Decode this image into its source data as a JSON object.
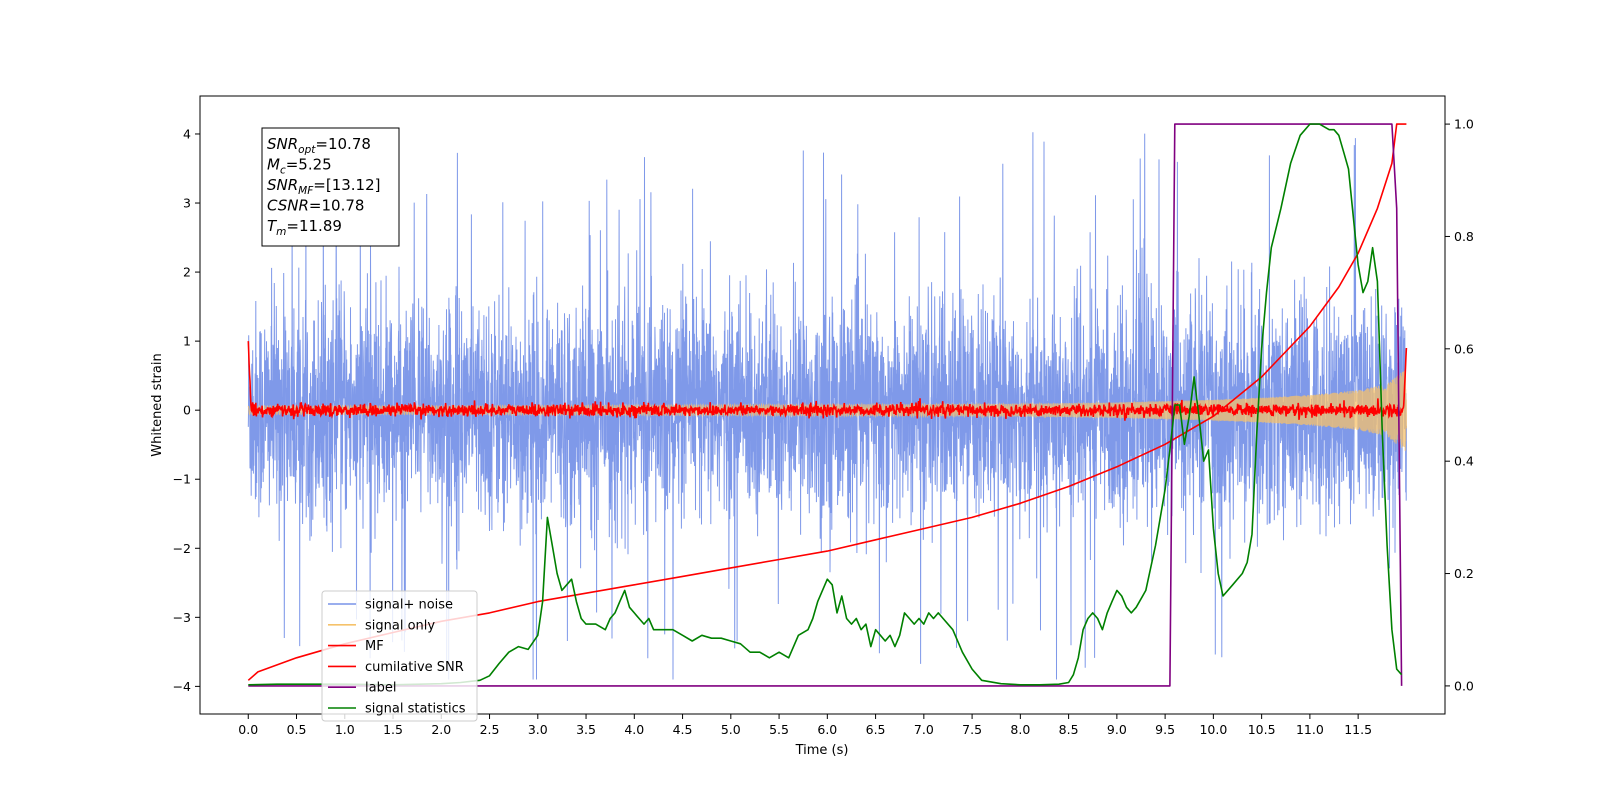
{
  "chart_data": {
    "type": "line",
    "xlabel": "Time (s)",
    "ylabel": "Whitened strain",
    "ylabel_right": "",
    "xlim": [
      -0.5,
      12.4
    ],
    "ylim": [
      -4.4,
      4.55
    ],
    "ylim_right": [
      -0.05,
      1.05
    ],
    "x_ticks": [
      0.0,
      0.5,
      1.0,
      1.5,
      2.0,
      2.5,
      3.0,
      3.5,
      4.0,
      4.5,
      5.0,
      5.5,
      6.0,
      6.5,
      7.0,
      7.5,
      8.0,
      8.5,
      9.0,
      9.5,
      10.0,
      10.5,
      11.0,
      11.5
    ],
    "x_tick_labels": [
      "0.0",
      "0.5",
      "1.0",
      "1.5",
      "2.0",
      "2.5",
      "3.0",
      "3.5",
      "4.0",
      "4.5",
      "5.0",
      "5.5",
      "6.0",
      "6.5",
      "7.0",
      "7.5",
      "8.0",
      "8.5",
      "9.0",
      "9.5",
      "10.0",
      "10.5",
      "11.0",
      "11.5"
    ],
    "y_ticks": [
      -4,
      -3,
      -2,
      -1,
      0,
      1,
      2,
      3,
      4
    ],
    "y_tick_labels": [
      "−4",
      "−3",
      "−2",
      "−1",
      "0",
      "1",
      "2",
      "3",
      "4"
    ],
    "y_right_ticks": [
      0.0,
      0.2,
      0.4,
      0.6,
      0.8,
      1.0
    ],
    "y_right_tick_labels": [
      "0.0",
      "0.2",
      "0.4",
      "0.6",
      "0.8",
      "1.0"
    ],
    "grid": false,
    "legend_placement": "lower-left",
    "annotation_box": {
      "placement": "top-left",
      "lines": [
        {
          "base": "SNR",
          "sub": "opt",
          "value": "=10.78"
        },
        {
          "base": "M",
          "sub": "c",
          "value": "=5.25"
        },
        {
          "base": "SNR",
          "sub": "MF",
          "value": "=[13.12]"
        },
        {
          "base": "CSNR",
          "sub": "",
          "value": "=10.78"
        },
        {
          "base": "T",
          "sub": "m",
          "value": "=11.89"
        }
      ]
    },
    "series": [
      {
        "name": "signal+ noise",
        "color": "#7893e8",
        "axis": "left",
        "style": "noise",
        "x_range": [
          0.0,
          12.0
        ],
        "typical_range": [
          -2.0,
          2.0
        ],
        "peak_range": [
          -3.9,
          4.2
        ]
      },
      {
        "name": "signal only",
        "color": "#f5c26b",
        "axis": "left",
        "style": "chirp",
        "x_range": [
          0.0,
          12.0
        ],
        "envelope": {
          "x": [
            0,
            2,
            4,
            6,
            8,
            9,
            10,
            10.5,
            11,
            11.5,
            11.8,
            11.95,
            12.0
          ],
          "amp": [
            0.06,
            0.06,
            0.07,
            0.08,
            0.09,
            0.11,
            0.15,
            0.18,
            0.22,
            0.29,
            0.38,
            0.55,
            0.6
          ]
        }
      },
      {
        "name": "MF",
        "color": "#ff0000",
        "axis": "left",
        "style": "noise",
        "x_range": [
          0.0,
          12.0
        ],
        "typical_range": [
          -0.12,
          0.12
        ],
        "start_value": 1.0,
        "end_value": 0.9
      },
      {
        "name": "cumilative SNR",
        "color": "#ff0000",
        "axis": "right",
        "x": [
          0.0,
          0.1,
          0.5,
          1.0,
          1.5,
          2.0,
          2.5,
          3.0,
          3.5,
          4.0,
          4.5,
          5.0,
          5.5,
          6.0,
          6.5,
          7.0,
          7.5,
          8.0,
          8.5,
          9.0,
          9.5,
          10.0,
          10.5,
          11.0,
          11.3,
          11.5,
          11.7,
          11.85,
          11.9,
          12.0
        ],
        "y": [
          0.01,
          0.025,
          0.05,
          0.075,
          0.095,
          0.115,
          0.13,
          0.15,
          0.165,
          0.18,
          0.195,
          0.21,
          0.225,
          0.24,
          0.26,
          0.28,
          0.3,
          0.325,
          0.355,
          0.39,
          0.43,
          0.48,
          0.55,
          0.64,
          0.71,
          0.77,
          0.85,
          0.93,
          1.0,
          1.0
        ]
      },
      {
        "name": "label",
        "color": "#800080",
        "axis": "right",
        "x": [
          0.0,
          9.55,
          9.6,
          11.85,
          11.9,
          11.95
        ],
        "y": [
          0.0,
          0.0,
          1.0,
          1.0,
          0.85,
          0.0
        ]
      },
      {
        "name": "signal statistics",
        "color": "#008000",
        "axis": "right",
        "x": [
          0.0,
          0.3,
          1.0,
          1.5,
          2.0,
          2.2,
          2.4,
          2.5,
          2.6,
          2.7,
          2.8,
          2.9,
          3.0,
          3.05,
          3.1,
          3.15,
          3.2,
          3.25,
          3.3,
          3.35,
          3.4,
          3.45,
          3.5,
          3.55,
          3.6,
          3.7,
          3.75,
          3.8,
          3.85,
          3.9,
          3.95,
          4.0,
          4.05,
          4.1,
          4.15,
          4.2,
          4.3,
          4.4,
          4.5,
          4.6,
          4.7,
          4.8,
          4.9,
          5.0,
          5.1,
          5.2,
          5.3,
          5.4,
          5.5,
          5.6,
          5.7,
          5.8,
          5.85,
          5.9,
          6.0,
          6.05,
          6.1,
          6.15,
          6.2,
          6.25,
          6.3,
          6.35,
          6.4,
          6.45,
          6.5,
          6.55,
          6.6,
          6.65,
          6.7,
          6.75,
          6.8,
          6.85,
          6.9,
          6.95,
          7.0,
          7.05,
          7.1,
          7.15,
          7.2,
          7.3,
          7.4,
          7.5,
          7.6,
          7.8,
          8.0,
          8.2,
          8.4,
          8.5,
          8.55,
          8.6,
          8.65,
          8.7,
          8.75,
          8.8,
          8.85,
          8.9,
          8.95,
          9.0,
          9.05,
          9.1,
          9.15,
          9.2,
          9.3,
          9.4,
          9.5,
          9.55,
          9.6,
          9.65,
          9.7,
          9.75,
          9.8,
          9.85,
          9.9,
          9.95,
          10.0,
          10.05,
          10.1,
          10.2,
          10.3,
          10.35,
          10.4,
          10.45,
          10.5,
          10.55,
          10.6,
          10.7,
          10.8,
          10.9,
          11.0,
          11.1,
          11.2,
          11.25,
          11.3,
          11.35,
          11.4,
          11.5,
          11.55,
          11.6,
          11.65,
          11.7,
          11.75,
          11.8,
          11.85,
          11.9,
          11.95
        ],
        "y": [
          0.002,
          0.003,
          0.003,
          0.002,
          0.004,
          0.006,
          0.01,
          0.018,
          0.04,
          0.06,
          0.07,
          0.065,
          0.09,
          0.15,
          0.3,
          0.25,
          0.2,
          0.17,
          0.18,
          0.19,
          0.15,
          0.12,
          0.11,
          0.11,
          0.11,
          0.1,
          0.12,
          0.13,
          0.15,
          0.17,
          0.14,
          0.13,
          0.12,
          0.11,
          0.12,
          0.1,
          0.1,
          0.1,
          0.09,
          0.08,
          0.09,
          0.085,
          0.085,
          0.08,
          0.075,
          0.06,
          0.06,
          0.05,
          0.06,
          0.05,
          0.09,
          0.1,
          0.12,
          0.15,
          0.19,
          0.18,
          0.13,
          0.16,
          0.12,
          0.11,
          0.12,
          0.1,
          0.11,
          0.07,
          0.1,
          0.09,
          0.08,
          0.09,
          0.07,
          0.09,
          0.13,
          0.12,
          0.11,
          0.12,
          0.11,
          0.13,
          0.12,
          0.13,
          0.12,
          0.1,
          0.06,
          0.03,
          0.01,
          0.004,
          0.002,
          0.002,
          0.003,
          0.006,
          0.02,
          0.05,
          0.1,
          0.12,
          0.13,
          0.12,
          0.1,
          0.13,
          0.15,
          0.17,
          0.16,
          0.14,
          0.13,
          0.14,
          0.17,
          0.25,
          0.35,
          0.42,
          0.5,
          0.5,
          0.43,
          0.48,
          0.55,
          0.48,
          0.4,
          0.42,
          0.28,
          0.2,
          0.16,
          0.18,
          0.2,
          0.22,
          0.27,
          0.45,
          0.6,
          0.7,
          0.78,
          0.85,
          0.93,
          0.98,
          1.0,
          1.0,
          0.99,
          0.99,
          0.98,
          0.95,
          0.92,
          0.75,
          0.7,
          0.72,
          0.78,
          0.72,
          0.45,
          0.25,
          0.1,
          0.03,
          0.02
        ]
      }
    ]
  }
}
